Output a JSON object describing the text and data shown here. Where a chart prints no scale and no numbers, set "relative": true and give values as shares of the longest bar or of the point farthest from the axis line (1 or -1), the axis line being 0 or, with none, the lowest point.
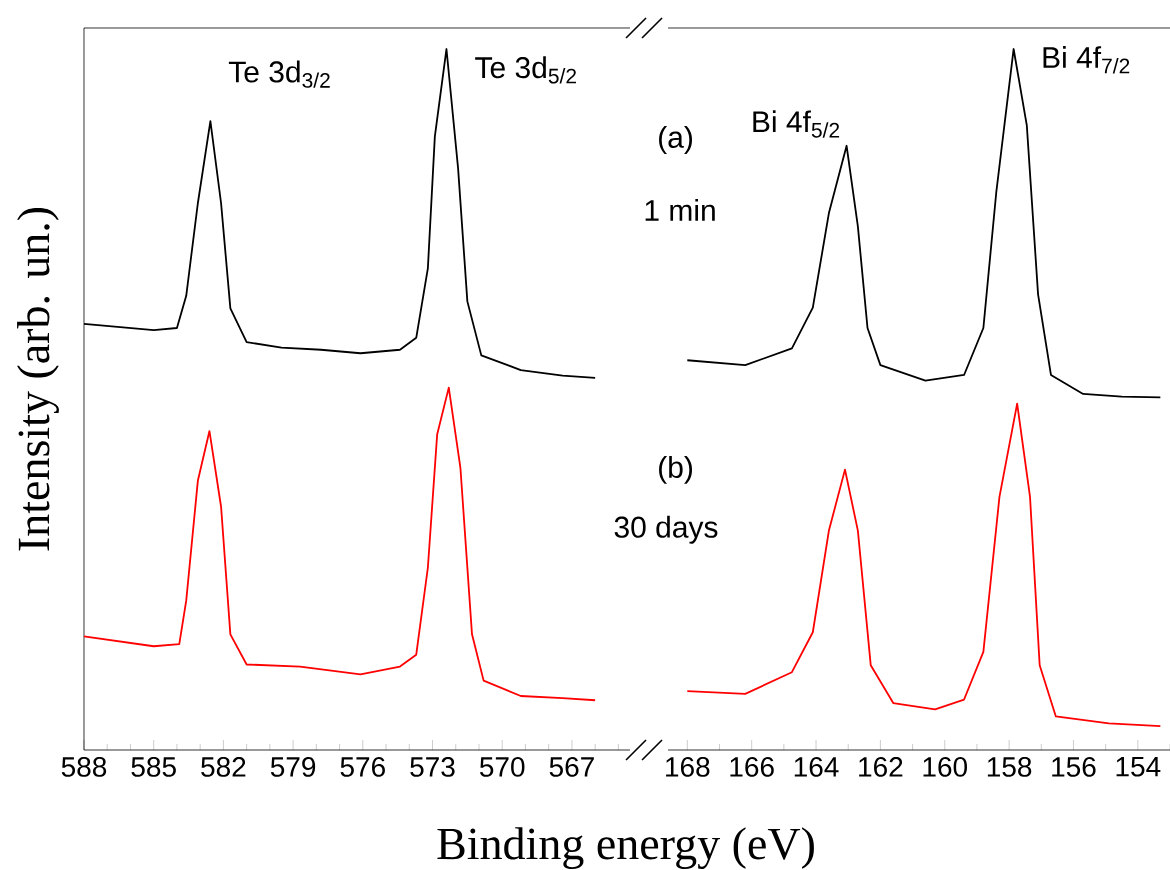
{
  "chart_data": [
    {
      "type": "line",
      "relative": true,
      "tick_labels": "x",
      "xlabel": "Binding energy (eV)",
      "ylabel": "Intensity (arb. un.)",
      "xlim": [
        588,
        564.5
      ],
      "xticks": [
        588,
        {
          "value": 587,
          "label": null
        },
        {
          "value": 586,
          "label": null
        },
        585,
        {
          "value": 584,
          "label": null
        },
        {
          "value": 583,
          "label": null
        },
        582,
        {
          "value": 581,
          "label": null
        },
        {
          "value": 580,
          "label": null
        },
        579,
        {
          "value": 578,
          "label": null
        },
        {
          "value": 577,
          "label": null
        },
        576,
        {
          "value": 575,
          "label": null
        },
        {
          "value": 574,
          "label": null
        },
        573,
        {
          "value": 572,
          "label": null
        },
        {
          "value": 571,
          "label": null
        },
        570,
        {
          "value": 569,
          "label": null
        },
        {
          "value": 568,
          "label": null
        },
        567,
        {
          "value": 566,
          "label": null
        },
        {
          "value": 565,
          "label": null
        }
      ],
      "series": [
        {
          "color": "#000000",
          "x": [
            588,
            585,
            584,
            583.6,
            583.1,
            582.56,
            582.1,
            581.7,
            581.0,
            579.5,
            577.8,
            576.1,
            574.4,
            573.7,
            573.2,
            572.9,
            572.4,
            571.9,
            571.5,
            570.9,
            569.2,
            567.4,
            566.0
          ],
          "values": [
            0.608,
            0.599,
            0.602,
            0.648,
            0.78,
            0.897,
            0.78,
            0.63,
            0.582,
            0.574,
            0.571,
            0.566,
            0.571,
            0.588,
            0.687,
            0.875,
            1.0,
            0.83,
            0.64,
            0.563,
            0.542,
            0.534,
            0.531
          ]
        },
        {
          "color": "#ff0000",
          "x": [
            588,
            585,
            583.9,
            583.6,
            583.1,
            582.6,
            582.1,
            581.7,
            581.0,
            578.7,
            576.1,
            574.4,
            573.7,
            573.2,
            572.8,
            572.3,
            571.8,
            571.3,
            570.8,
            569.2,
            567.4,
            566.0
          ],
          "values": [
            0.162,
            0.148,
            0.151,
            0.213,
            0.384,
            0.455,
            0.347,
            0.165,
            0.122,
            0.119,
            0.108,
            0.119,
            0.136,
            0.26,
            0.45,
            0.517,
            0.403,
            0.165,
            0.099,
            0.077,
            0.074,
            0.071
          ]
        }
      ],
      "annotations": [
        "Te 3d$_{3/2}$",
        "Te 3d$_{5/2}$"
      ]
    },
    {
      "type": "line",
      "relative": true,
      "tick_labels": "x",
      "xlim": [
        168.6,
        153
      ],
      "xticks": [
        168,
        {
          "value": 167,
          "label": null
        },
        166,
        {
          "value": 165,
          "label": null
        },
        164,
        {
          "value": 163,
          "label": null
        },
        162,
        {
          "value": 161,
          "label": null
        },
        160,
        {
          "value": 159,
          "label": null
        },
        158,
        {
          "value": 157,
          "label": null
        },
        156,
        {
          "value": 155,
          "label": null
        },
        154,
        {
          "value": 153,
          "label": null
        }
      ],
      "series": [
        {
          "color": "#000000",
          "x": [
            168.0,
            166.2,
            164.75,
            164.1,
            163.6,
            163.05,
            162.7,
            162.4,
            162.0,
            160.6,
            159.4,
            158.8,
            158.4,
            157.86,
            157.45,
            157.1,
            156.7,
            155.7,
            154.5,
            153.3
          ],
          "values": [
            0.556,
            0.549,
            0.573,
            0.631,
            0.766,
            0.862,
            0.747,
            0.602,
            0.549,
            0.527,
            0.535,
            0.602,
            0.795,
            1.0,
            0.891,
            0.65,
            0.535,
            0.508,
            0.504,
            0.503
          ]
        },
        {
          "color": "#ff0000",
          "x": [
            168.0,
            166.2,
            164.75,
            164.1,
            163.6,
            163.1,
            162.7,
            162.3,
            161.6,
            160.3,
            159.4,
            158.8,
            158.3,
            157.75,
            157.35,
            157.05,
            156.55,
            154.9,
            153.3
          ],
          "values": [
            0.084,
            0.08,
            0.111,
            0.168,
            0.313,
            0.4,
            0.313,
            0.121,
            0.067,
            0.058,
            0.072,
            0.14,
            0.361,
            0.494,
            0.361,
            0.121,
            0.048,
            0.038,
            0.034
          ]
        }
      ],
      "annotations": [
        "Bi 4f$_{5/2}$",
        "Bi 4f$_{7/2}$",
        "(a)",
        "1 min",
        "(b)",
        "30 days"
      ]
    }
  ]
}
